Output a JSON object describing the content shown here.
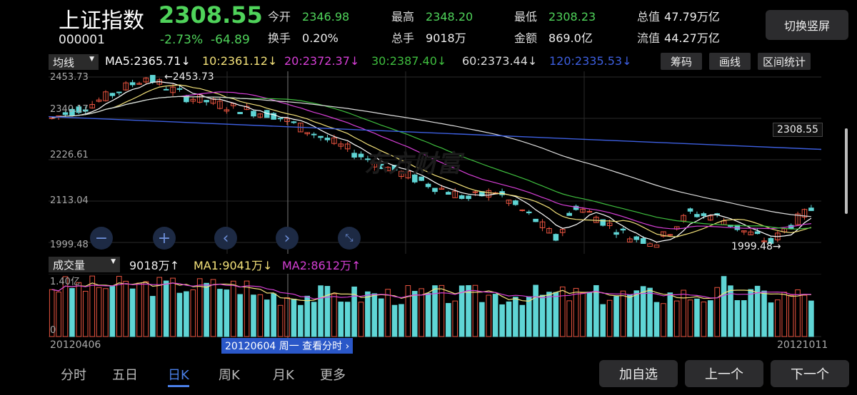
{
  "header": {
    "name": "上证指数",
    "price": "2308.55",
    "code": "000001",
    "change_pct": "-2.73%",
    "change_abs": "-64.89",
    "stats": [
      {
        "label": "今开",
        "value": "2346.98",
        "color": "green"
      },
      {
        "label": "最高",
        "value": "2348.20",
        "color": "green"
      },
      {
        "label": "最低",
        "value": "2308.23",
        "color": "green"
      },
      {
        "label": "总值",
        "value": "47.79万亿",
        "color": "white"
      },
      {
        "label": "换手",
        "value": "0.20%",
        "color": "white"
      },
      {
        "label": "总手",
        "value": "9018万",
        "color": "white"
      },
      {
        "label": "金额",
        "value": "869.0亿",
        "color": "white"
      },
      {
        "label": "流值",
        "value": "44.27万亿",
        "color": "white"
      }
    ],
    "switch_button": "切换竖屏"
  },
  "ma_bar": {
    "selector": "均线",
    "items": [
      {
        "text": "MA5:2365.71↓",
        "color": "#ffffff"
      },
      {
        "text": "10:2361.12↓",
        "color": "#f4e27a"
      },
      {
        "text": "20:2372.37↓",
        "color": "#d63fd6"
      },
      {
        "text": "30:2387.40↓",
        "color": "#3fbf3f"
      },
      {
        "text": "60:2373.44↓",
        "color": "#dddddd"
      },
      {
        "text": "120:2335.53↓",
        "color": "#3d5fe0"
      }
    ],
    "buttons": [
      "筹码",
      "画线",
      "区间统计"
    ]
  },
  "price_axis": {
    "labels": [
      "2453.73",
      "2340.17",
      "2226.61",
      "2113.04",
      "1999.48"
    ],
    "current": "2308.55",
    "high_label": "2453.73",
    "low_label": "1999.48"
  },
  "vol_bar": {
    "selector": "成交量",
    "volume": "9018万↑",
    "ma1": "MA1:9041万↓",
    "ma2": "MA2:8612万↑",
    "axis_top": "1.40亿",
    "axis_zero": "0"
  },
  "dates": {
    "start": "20120406",
    "end": "20121011",
    "cursor": "20120604 周一 查看分时"
  },
  "colors": {
    "up": "#e8533f",
    "down": "#5fd5d5",
    "ma5": "#ffffff",
    "ma10": "#f4e27a",
    "ma20": "#d63fd6",
    "ma30": "#3fbf3f",
    "ma60": "#dddddd",
    "ma120": "#3d5fe0"
  },
  "watermark": "东方财富",
  "tabs": [
    "分时",
    "五日",
    "日K",
    "周K",
    "月K",
    "更多"
  ],
  "active_tab": "日K",
  "bottom_buttons": [
    "加自选",
    "上一个",
    "下一个"
  ],
  "controls": [
    "zoom-out-icon",
    "zoom-in-icon",
    "left-icon",
    "right-icon",
    "fullscreen-icon"
  ],
  "chart_data": {
    "type": "candlestick",
    "ylim": [
      1999.48,
      2453.73
    ],
    "high": 2453.73,
    "low": 1999.48,
    "last": 2308.55,
    "vol_max_yi": 1.4,
    "bars": 80
  }
}
